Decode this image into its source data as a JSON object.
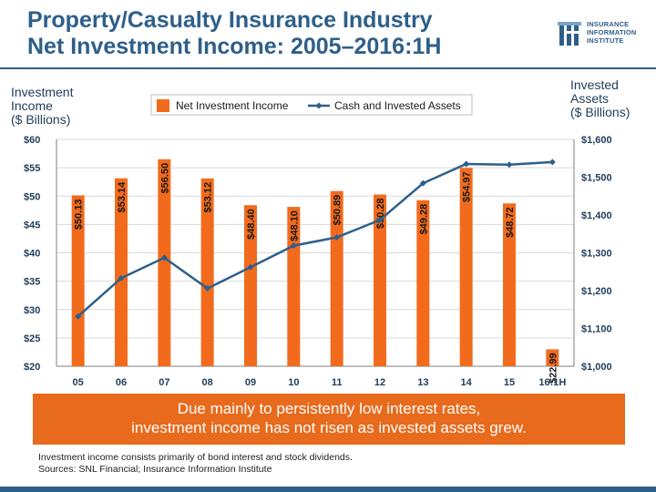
{
  "title": {
    "line1": "Property/Casualty Insurance Industry",
    "line2": "Net Investment Income: 2005–2016:1H"
  },
  "logo": {
    "line1": "INSURANCE",
    "line2": "INFORMATION",
    "line3": "INSTITUTE"
  },
  "callout": {
    "line1": "Due mainly to persistently low interest rates,",
    "line2": "investment income has not risen as invested assets grew."
  },
  "footnote": {
    "line1": "Investment income consists primarily of bond interest and stock dividends.",
    "line2": "Sources: SNL Financial; Insurance Information Institute"
  },
  "colors": {
    "bar": "#f26b1d",
    "line": "#2e5f8a",
    "title": "#2e5f8a",
    "callout": "#e86a1c"
  },
  "chart_data": {
    "type": "bar",
    "categories": [
      "05",
      "06",
      "07",
      "08",
      "09",
      "10",
      "11",
      "12",
      "13",
      "14",
      "15",
      "16:1H"
    ],
    "y_left_label_lines": [
      "Investment",
      "Income",
      "($ Billions)"
    ],
    "y_right_label_lines": [
      "Invested",
      "Assets",
      "($ Billions)"
    ],
    "y_left_range": [
      20,
      60
    ],
    "y_left_ticks": [
      20,
      25,
      30,
      35,
      40,
      45,
      50,
      55,
      60
    ],
    "y_left_tick_labels": [
      "$20",
      "$25",
      "$30",
      "$35",
      "$40",
      "$45",
      "$50",
      "$55",
      "$60"
    ],
    "y_right_range": [
      1000,
      1600
    ],
    "y_right_ticks": [
      1000,
      1100,
      1200,
      1300,
      1400,
      1500,
      1600
    ],
    "y_right_tick_labels": [
      "$1,000",
      "$1,100",
      "$1,200",
      "$1,300",
      "$1,400",
      "$1,500",
      "$1,600"
    ],
    "legend_position": "top",
    "grid": true,
    "series": [
      {
        "name": "Net Investment Income",
        "type": "bar",
        "axis": "left",
        "values": [
          50.13,
          53.14,
          56.5,
          53.12,
          48.4,
          48.1,
          50.89,
          50.28,
          49.28,
          54.97,
          48.72,
          22.99
        ],
        "labels": [
          "$50.13",
          "$53.14",
          "$56.50",
          "$53.12",
          "$48.40",
          "$48.10",
          "$50.89",
          "$50.28",
          "$49.28",
          "$54.97",
          "$48.72",
          "$22.99"
        ]
      },
      {
        "name": "Cash and Invested Assets",
        "type": "line",
        "axis": "right",
        "values": [
          1132,
          1233,
          1287,
          1206,
          1262,
          1319,
          1341,
          1387,
          1484,
          1535,
          1533,
          1540
        ]
      }
    ]
  }
}
